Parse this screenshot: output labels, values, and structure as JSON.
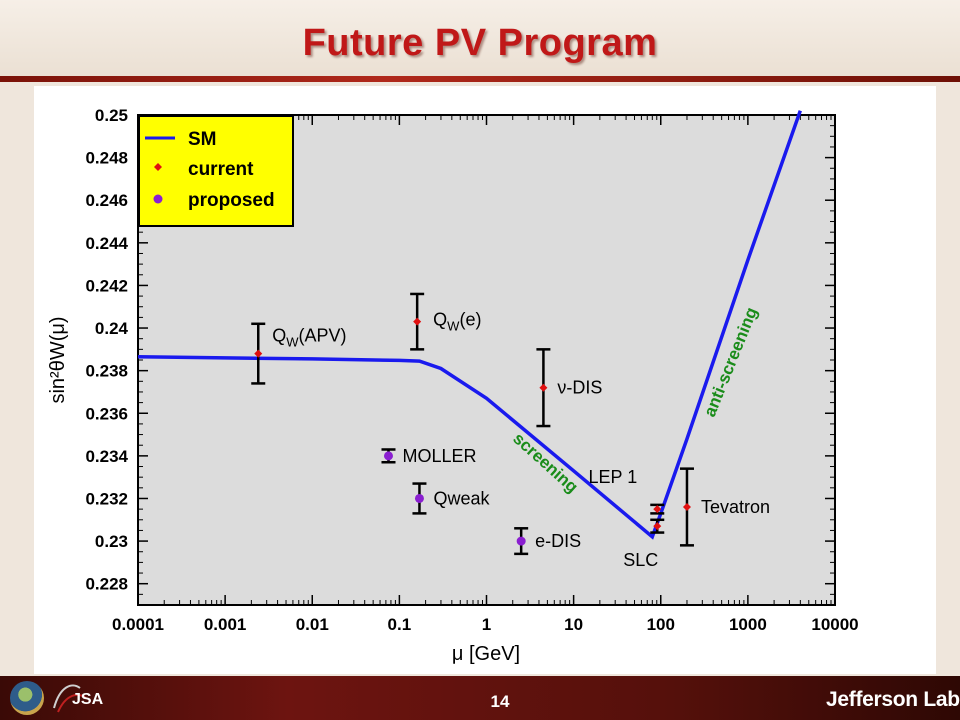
{
  "slide": {
    "title": "Future PV Program",
    "page_number": "14",
    "brand": "Jefferson Lab",
    "seal_icon": "doe-seal-icon",
    "jsa_logo_text": "JSA"
  },
  "colors": {
    "sm_line": "#1a1aee",
    "current": "#e01010",
    "proposed": "#8a1fd0",
    "annotation": "#1a8c1a",
    "plot_bg": "#dcdcdc",
    "legend_bg": "#ffff00",
    "title": "#c01818"
  },
  "chart_data": {
    "type": "scatter",
    "xlabel": "μ [GeV]",
    "ylabel": "sin²θW(μ)",
    "x_scale": "log",
    "xlim": [
      0.0001,
      10000
    ],
    "ylim": [
      0.227,
      0.25
    ],
    "x_ticks": [
      "0.0001",
      "0.001",
      "0.01",
      "0.1",
      "1",
      "10",
      "100",
      "1000",
      "10000"
    ],
    "y_ticks": [
      "0.228",
      "0.23",
      "0.232",
      "0.234",
      "0.236",
      "0.238",
      "0.24",
      "0.242",
      "0.244",
      "0.246",
      "0.248",
      "0.25"
    ],
    "grid": false,
    "legend_position": "top-left",
    "legend": [
      {
        "label": "SM",
        "kind": "line"
      },
      {
        "label": "current",
        "kind": "current"
      },
      {
        "label": "proposed",
        "kind": "proposed"
      }
    ],
    "sm_curve": {
      "x": [
        0.0001,
        0.001,
        0.01,
        0.1,
        0.17,
        0.3,
        1,
        10,
        80,
        100,
        200,
        1000,
        4000
      ],
      "y": [
        0.23865,
        0.2386,
        0.23855,
        0.23848,
        0.23845,
        0.2381,
        0.2367,
        0.2333,
        0.2302,
        0.2313,
        0.2348,
        0.2432,
        0.2502
      ]
    },
    "series": [
      {
        "name": "current",
        "points": [
          {
            "label": "QW(APV)",
            "x": 0.0024,
            "y": 0.2388,
            "err": 0.0014
          },
          {
            "label": "QW(e)",
            "x": 0.16,
            "y": 0.2403,
            "err": 0.0013
          },
          {
            "label": "ν-DIS",
            "x": 4.5,
            "y": 0.2372,
            "err": 0.0018
          },
          {
            "label": "LEP 1",
            "x": 91.2,
            "y": 0.2315,
            "err": 0.0002
          },
          {
            "label": "SLC",
            "x": 91.2,
            "y": 0.2307,
            "err": 0.0003
          },
          {
            "label": "Tevatron",
            "x": 200,
            "y": 0.2316,
            "err": 0.0018
          }
        ]
      },
      {
        "name": "proposed",
        "points": [
          {
            "label": "MOLLER",
            "x": 0.075,
            "y": 0.234,
            "err": 0.0003
          },
          {
            "label": "Qweak",
            "x": 0.17,
            "y": 0.232,
            "err": 0.0007
          },
          {
            "label": "e-DIS",
            "x": 2.5,
            "y": 0.23,
            "err": 0.0006
          }
        ]
      }
    ],
    "annotations": [
      {
        "text": "screening"
      },
      {
        "text": "anti-screening"
      }
    ]
  }
}
